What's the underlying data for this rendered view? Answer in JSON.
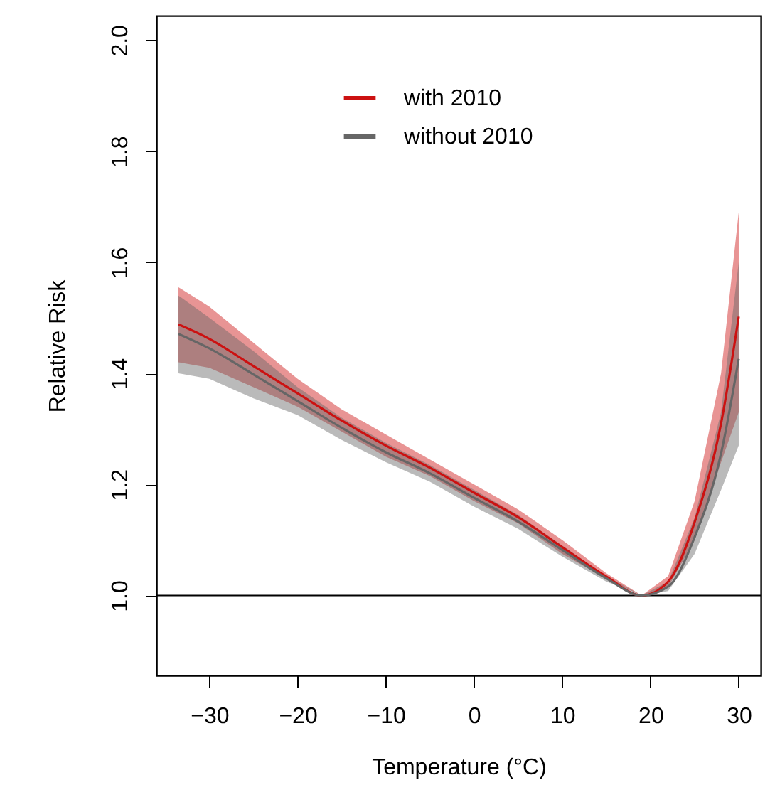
{
  "chart_data": {
    "type": "line",
    "xlabel": "Temperature (°C)",
    "ylabel": "Relative Risk",
    "x": [
      -33.5,
      -30,
      -25,
      -20,
      -15,
      -10,
      -5,
      0,
      5,
      10,
      15,
      19,
      22,
      25,
      28,
      30
    ],
    "series": [
      {
        "name": "with 2010",
        "color": "#cc1111",
        "values": [
          1.488,
          1.462,
          1.413,
          1.364,
          1.315,
          1.27,
          1.23,
          1.185,
          1.141,
          1.087,
          1.034,
          1.0,
          1.025,
          1.132,
          1.31,
          1.502
        ],
        "lower": [
          1.42,
          1.41,
          1.375,
          1.34,
          1.295,
          1.25,
          1.215,
          1.17,
          1.13,
          1.075,
          1.03,
          1.0,
          1.015,
          1.1,
          1.24,
          1.33
        ],
        "upper": [
          1.555,
          1.52,
          1.455,
          1.39,
          1.335,
          1.29,
          1.245,
          1.2,
          1.155,
          1.1,
          1.04,
          1.0,
          1.035,
          1.17,
          1.4,
          1.69
        ]
      },
      {
        "name": "without 2010",
        "color": "#666666",
        "values": [
          1.471,
          1.445,
          1.398,
          1.35,
          1.302,
          1.258,
          1.22,
          1.176,
          1.133,
          1.082,
          1.031,
          1.0,
          1.016,
          1.105,
          1.256,
          1.426
        ],
        "lower": [
          1.4,
          1.39,
          1.355,
          1.325,
          1.28,
          1.24,
          1.205,
          1.16,
          1.12,
          1.07,
          1.025,
          1.0,
          1.008,
          1.075,
          1.19,
          1.27
        ],
        "upper": [
          1.54,
          1.5,
          1.44,
          1.375,
          1.32,
          1.275,
          1.235,
          1.19,
          1.145,
          1.09,
          1.035,
          1.0,
          1.025,
          1.14,
          1.33,
          1.6
        ]
      }
    ],
    "xlim": [
      -36,
      32.5
    ],
    "xticks": [
      -30,
      -20,
      -10,
      0,
      10,
      20,
      30
    ],
    "ylim": [
      0.856,
      2.044
    ],
    "yticks": [
      {
        "value": 1,
        "label": "1.0"
      },
      {
        "value": 1.2,
        "label": "1.2"
      },
      {
        "value": 1.4,
        "label": "1.4"
      },
      {
        "value": 1.6,
        "label": "1.6"
      },
      {
        "value": 1.8,
        "label": "1.8"
      },
      {
        "value": 2,
        "label": "2.0"
      }
    ],
    "ref_lines": [
      {
        "axis": "y",
        "value": 1,
        "color": "#000000"
      }
    ],
    "legend": "top",
    "grid": false
  }
}
